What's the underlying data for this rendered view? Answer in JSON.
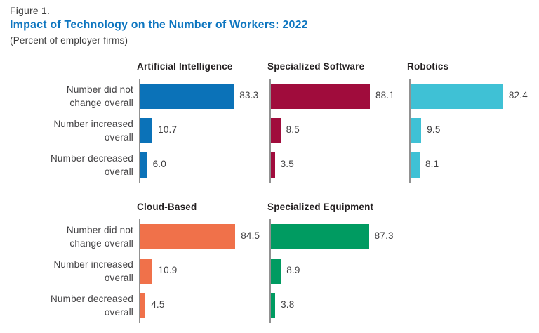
{
  "header": {
    "figure_label": "Figure 1.",
    "title": "Impact of Technology on the Number of Workers: 2022",
    "subtitle": "(Percent of employer firms)"
  },
  "row_label_lines": [
    [
      "Number did not",
      "change overall"
    ],
    [
      "Number increased",
      "overall"
    ],
    [
      "Number decreased",
      "overall"
    ]
  ],
  "chart_data": {
    "type": "bar",
    "orientation": "horizontal",
    "title": "Impact of Technology on the Number of Workers: 2022",
    "subtitle": "(Percent of employer firms)",
    "unit": "percent of employer firms",
    "categories": [
      "Number did not change overall",
      "Number increased overall",
      "Number decreased overall"
    ],
    "xlim": [
      0,
      100
    ],
    "grid": false,
    "legend": false,
    "value_labels": true,
    "series": [
      {
        "name": "Artificial Intelligence",
        "color": "#0b72b8",
        "values": [
          83.3,
          10.7,
          6.0
        ]
      },
      {
        "name": "Specialized Software",
        "color": "#a00c3c",
        "values": [
          88.1,
          8.5,
          3.5
        ]
      },
      {
        "name": "Robotics",
        "color": "#3fc1d5",
        "values": [
          82.4,
          9.5,
          8.1
        ]
      },
      {
        "name": "Cloud-Based",
        "color": "#f0714a",
        "values": [
          84.5,
          10.9,
          4.5
        ]
      },
      {
        "name": "Specialized Equipment",
        "color": "#009b61",
        "values": [
          87.3,
          8.9,
          3.8
        ]
      }
    ],
    "layout_rows": [
      [
        0,
        1,
        2
      ],
      [
        3,
        4
      ]
    ]
  }
}
